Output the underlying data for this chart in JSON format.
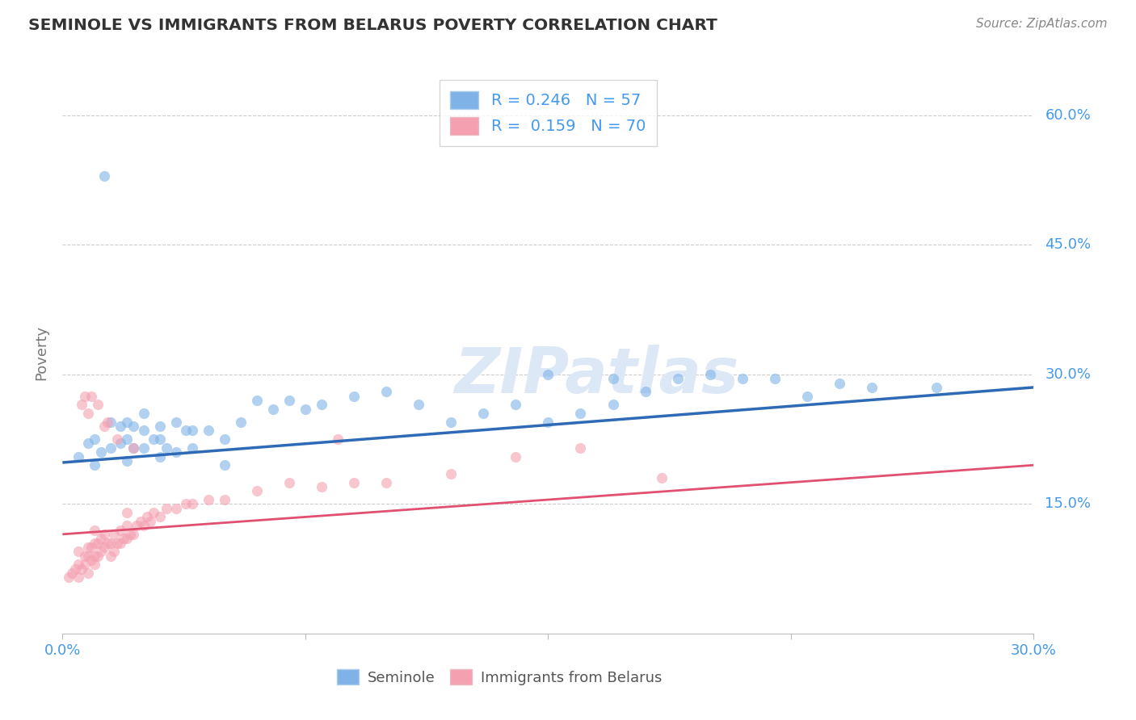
{
  "title": "SEMINOLE VS IMMIGRANTS FROM BELARUS POVERTY CORRELATION CHART",
  "source": "Source: ZipAtlas.com",
  "ylabel": "Poverty",
  "xlim": [
    0,
    0.3
  ],
  "ylim": [
    0,
    0.65
  ],
  "yticks": [
    0.0,
    0.15,
    0.3,
    0.45,
    0.6
  ],
  "ytick_labels": [
    "",
    "15.0%",
    "30.0%",
    "45.0%",
    "60.0%"
  ],
  "xticks": [
    0.0,
    0.075,
    0.15,
    0.225,
    0.3
  ],
  "xtick_labels": [
    "0.0%",
    "",
    "",
    "",
    "30.0%"
  ],
  "legend_bottom": [
    "Seminole",
    "Immigrants from Belarus"
  ],
  "legend_top": {
    "blue_R": "0.246",
    "blue_N": "57",
    "pink_R": "0.159",
    "pink_N": "70"
  },
  "blue_scatter_x": [
    0.005,
    0.008,
    0.01,
    0.01,
    0.012,
    0.015,
    0.015,
    0.018,
    0.018,
    0.02,
    0.02,
    0.02,
    0.022,
    0.022,
    0.025,
    0.025,
    0.025,
    0.028,
    0.03,
    0.03,
    0.03,
    0.032,
    0.035,
    0.035,
    0.038,
    0.04,
    0.04,
    0.045,
    0.05,
    0.05,
    0.055,
    0.06,
    0.065,
    0.07,
    0.075,
    0.08,
    0.09,
    0.1,
    0.11,
    0.12,
    0.13,
    0.14,
    0.15,
    0.16,
    0.17,
    0.18,
    0.19,
    0.2,
    0.21,
    0.22,
    0.24,
    0.15,
    0.17,
    0.013,
    0.27,
    0.25,
    0.23
  ],
  "blue_scatter_y": [
    0.205,
    0.22,
    0.195,
    0.225,
    0.21,
    0.215,
    0.245,
    0.22,
    0.24,
    0.2,
    0.225,
    0.245,
    0.215,
    0.24,
    0.215,
    0.235,
    0.255,
    0.225,
    0.205,
    0.225,
    0.24,
    0.215,
    0.21,
    0.245,
    0.235,
    0.215,
    0.235,
    0.235,
    0.195,
    0.225,
    0.245,
    0.27,
    0.26,
    0.27,
    0.26,
    0.265,
    0.275,
    0.28,
    0.265,
    0.245,
    0.255,
    0.265,
    0.245,
    0.255,
    0.265,
    0.28,
    0.295,
    0.3,
    0.295,
    0.295,
    0.29,
    0.3,
    0.295,
    0.53,
    0.285,
    0.285,
    0.275
  ],
  "pink_scatter_x": [
    0.002,
    0.003,
    0.004,
    0.005,
    0.005,
    0.005,
    0.006,
    0.007,
    0.007,
    0.008,
    0.008,
    0.008,
    0.009,
    0.009,
    0.01,
    0.01,
    0.01,
    0.01,
    0.011,
    0.011,
    0.012,
    0.012,
    0.013,
    0.013,
    0.014,
    0.015,
    0.015,
    0.016,
    0.016,
    0.017,
    0.018,
    0.018,
    0.019,
    0.02,
    0.02,
    0.02,
    0.021,
    0.022,
    0.023,
    0.024,
    0.025,
    0.026,
    0.027,
    0.028,
    0.03,
    0.032,
    0.035,
    0.038,
    0.04,
    0.045,
    0.05,
    0.06,
    0.07,
    0.08,
    0.09,
    0.1,
    0.12,
    0.14,
    0.16,
    0.185,
    0.085,
    0.013,
    0.008,
    0.006,
    0.007,
    0.009,
    0.011,
    0.014,
    0.017,
    0.022
  ],
  "pink_scatter_y": [
    0.065,
    0.07,
    0.075,
    0.065,
    0.08,
    0.095,
    0.075,
    0.08,
    0.09,
    0.07,
    0.09,
    0.1,
    0.085,
    0.1,
    0.08,
    0.09,
    0.105,
    0.12,
    0.09,
    0.105,
    0.095,
    0.11,
    0.1,
    0.115,
    0.105,
    0.09,
    0.105,
    0.095,
    0.115,
    0.105,
    0.105,
    0.12,
    0.11,
    0.11,
    0.125,
    0.14,
    0.115,
    0.115,
    0.125,
    0.13,
    0.125,
    0.135,
    0.13,
    0.14,
    0.135,
    0.145,
    0.145,
    0.15,
    0.15,
    0.155,
    0.155,
    0.165,
    0.175,
    0.17,
    0.175,
    0.175,
    0.185,
    0.205,
    0.215,
    0.18,
    0.225,
    0.24,
    0.255,
    0.265,
    0.275,
    0.275,
    0.265,
    0.245,
    0.225,
    0.215
  ],
  "blue_line_x": [
    0.0,
    0.3
  ],
  "blue_line_y": [
    0.198,
    0.285
  ],
  "pink_line_x": [
    0.0,
    0.3
  ],
  "pink_line_y": [
    0.115,
    0.195
  ],
  "bg_color": "#ffffff",
  "grid_color": "#cccccc",
  "blue_color": "#7fb3e8",
  "pink_color": "#f4a0b0",
  "blue_line_color": "#2e6ab5",
  "pink_line_color": "#e05070",
  "axis_tick_color": "#4499ee",
  "watermark_color": "#dce8f5",
  "title_color": "#333333",
  "source_color": "#888888"
}
